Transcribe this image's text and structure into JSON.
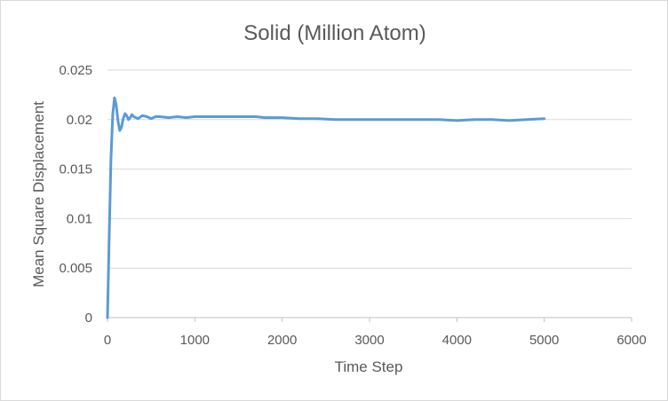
{
  "chart_data": {
    "type": "line",
    "title": "Solid (Million Atom)",
    "xlabel": "Time Step",
    "ylabel": "Mean Square Displacement",
    "xlim": [
      0,
      6000
    ],
    "ylim": [
      0,
      0.025
    ],
    "x_ticks": [
      "0",
      "1000",
      "2000",
      "3000",
      "4000",
      "5000",
      "6000"
    ],
    "y_ticks": [
      "0",
      "0.005",
      "0.01",
      "0.015",
      "0.02",
      "0.025"
    ],
    "grid": true,
    "legend": "none",
    "color": "#5b9bd5",
    "series": [
      {
        "x": [
          0,
          20,
          40,
          60,
          80,
          100,
          120,
          140,
          160,
          180,
          200,
          220,
          240,
          260,
          280,
          300,
          350,
          400,
          450,
          500,
          550,
          600,
          700,
          800,
          900,
          1000,
          1200,
          1400,
          1600,
          1700,
          1800,
          2000,
          2200,
          2400,
          2600,
          2800,
          3000,
          3200,
          3400,
          3600,
          3800,
          4000,
          4200,
          4400,
          4600,
          4800,
          5000
        ],
        "y": [
          0,
          0.0085,
          0.016,
          0.0205,
          0.0222,
          0.0215,
          0.0199,
          0.0189,
          0.0192,
          0.0201,
          0.0206,
          0.0204,
          0.02,
          0.0202,
          0.0205,
          0.0203,
          0.0201,
          0.0204,
          0.0203,
          0.0201,
          0.0203,
          0.0203,
          0.0202,
          0.0203,
          0.0202,
          0.0203,
          0.0203,
          0.0203,
          0.0203,
          0.0203,
          0.0202,
          0.0202,
          0.0201,
          0.0201,
          0.02,
          0.02,
          0.02,
          0.02,
          0.02,
          0.02,
          0.02,
          0.0199,
          0.02,
          0.02,
          0.0199,
          0.02,
          0.0201
        ]
      }
    ]
  }
}
